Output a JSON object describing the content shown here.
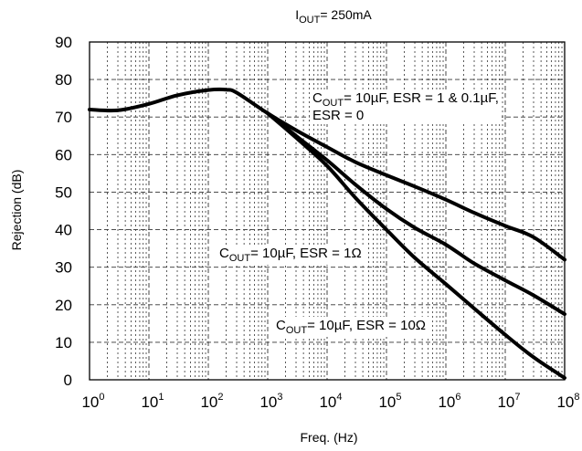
{
  "chart_data": {
    "type": "line",
    "title": {
      "main": "I",
      "sub": "OUT",
      "rest": "= 250mA"
    },
    "xlabel": "Freq. (Hz)",
    "ylabel": "Rejection (dB)",
    "xscale": "log",
    "xlim": [
      1,
      100000000
    ],
    "ylim": [
      0,
      90
    ],
    "grid": true,
    "x_ticks": [
      {
        "base": "10",
        "exp": "0"
      },
      {
        "base": "10",
        "exp": "1"
      },
      {
        "base": "10",
        "exp": "2"
      },
      {
        "base": "10",
        "exp": "3"
      },
      {
        "base": "10",
        "exp": "4"
      },
      {
        "base": "10",
        "exp": "5"
      },
      {
        "base": "10",
        "exp": "6"
      },
      {
        "base": "10",
        "exp": "7"
      },
      {
        "base": "10",
        "exp": "8"
      }
    ],
    "y_ticks": [
      "0",
      "10",
      "20",
      "30",
      "40",
      "50",
      "60",
      "70",
      "80",
      "90"
    ],
    "series": [
      {
        "label_lines": [
          {
            "main": "C",
            "sub": "OUT",
            "rest": "= 10µF, ESR = 1 & 0.1µF,"
          },
          {
            "main": "",
            "sub": "",
            "rest": "ESR = 0"
          }
        ],
        "x": [
          1,
          3,
          10,
          30,
          100,
          200,
          300,
          1000,
          3000,
          10000,
          30000,
          100000,
          300000,
          1000000,
          3000000,
          10000000,
          30000000,
          100000000
        ],
        "y": [
          72,
          71.8,
          73.5,
          75.8,
          77.2,
          77.3,
          76.5,
          71,
          66.5,
          62,
          58,
          54.5,
          51.5,
          48,
          44.5,
          41,
          38,
          32
        ]
      },
      {
        "label_lines": [
          {
            "main": "C",
            "sub": "OUT",
            "rest": "= 10µF, ESR = 1Ω"
          }
        ],
        "x": [
          1000,
          3000,
          10000,
          30000,
          100000,
          300000,
          1000000,
          3000000,
          10000000,
          30000000,
          100000000
        ],
        "y": [
          71,
          65,
          58.5,
          52,
          45.5,
          40.5,
          36,
          31,
          26.5,
          22.5,
          17.5
        ]
      },
      {
        "label_lines": [
          {
            "main": "C",
            "sub": "OUT",
            "rest": "= 10µF, ESR = 10Ω"
          }
        ],
        "x": [
          1000,
          3000,
          10000,
          30000,
          100000,
          300000,
          1000000,
          3000000,
          10000000,
          30000000,
          100000000
        ],
        "y": [
          71,
          64.5,
          57,
          48.5,
          40,
          32.5,
          25.5,
          19,
          12,
          6,
          0.5
        ]
      }
    ]
  }
}
